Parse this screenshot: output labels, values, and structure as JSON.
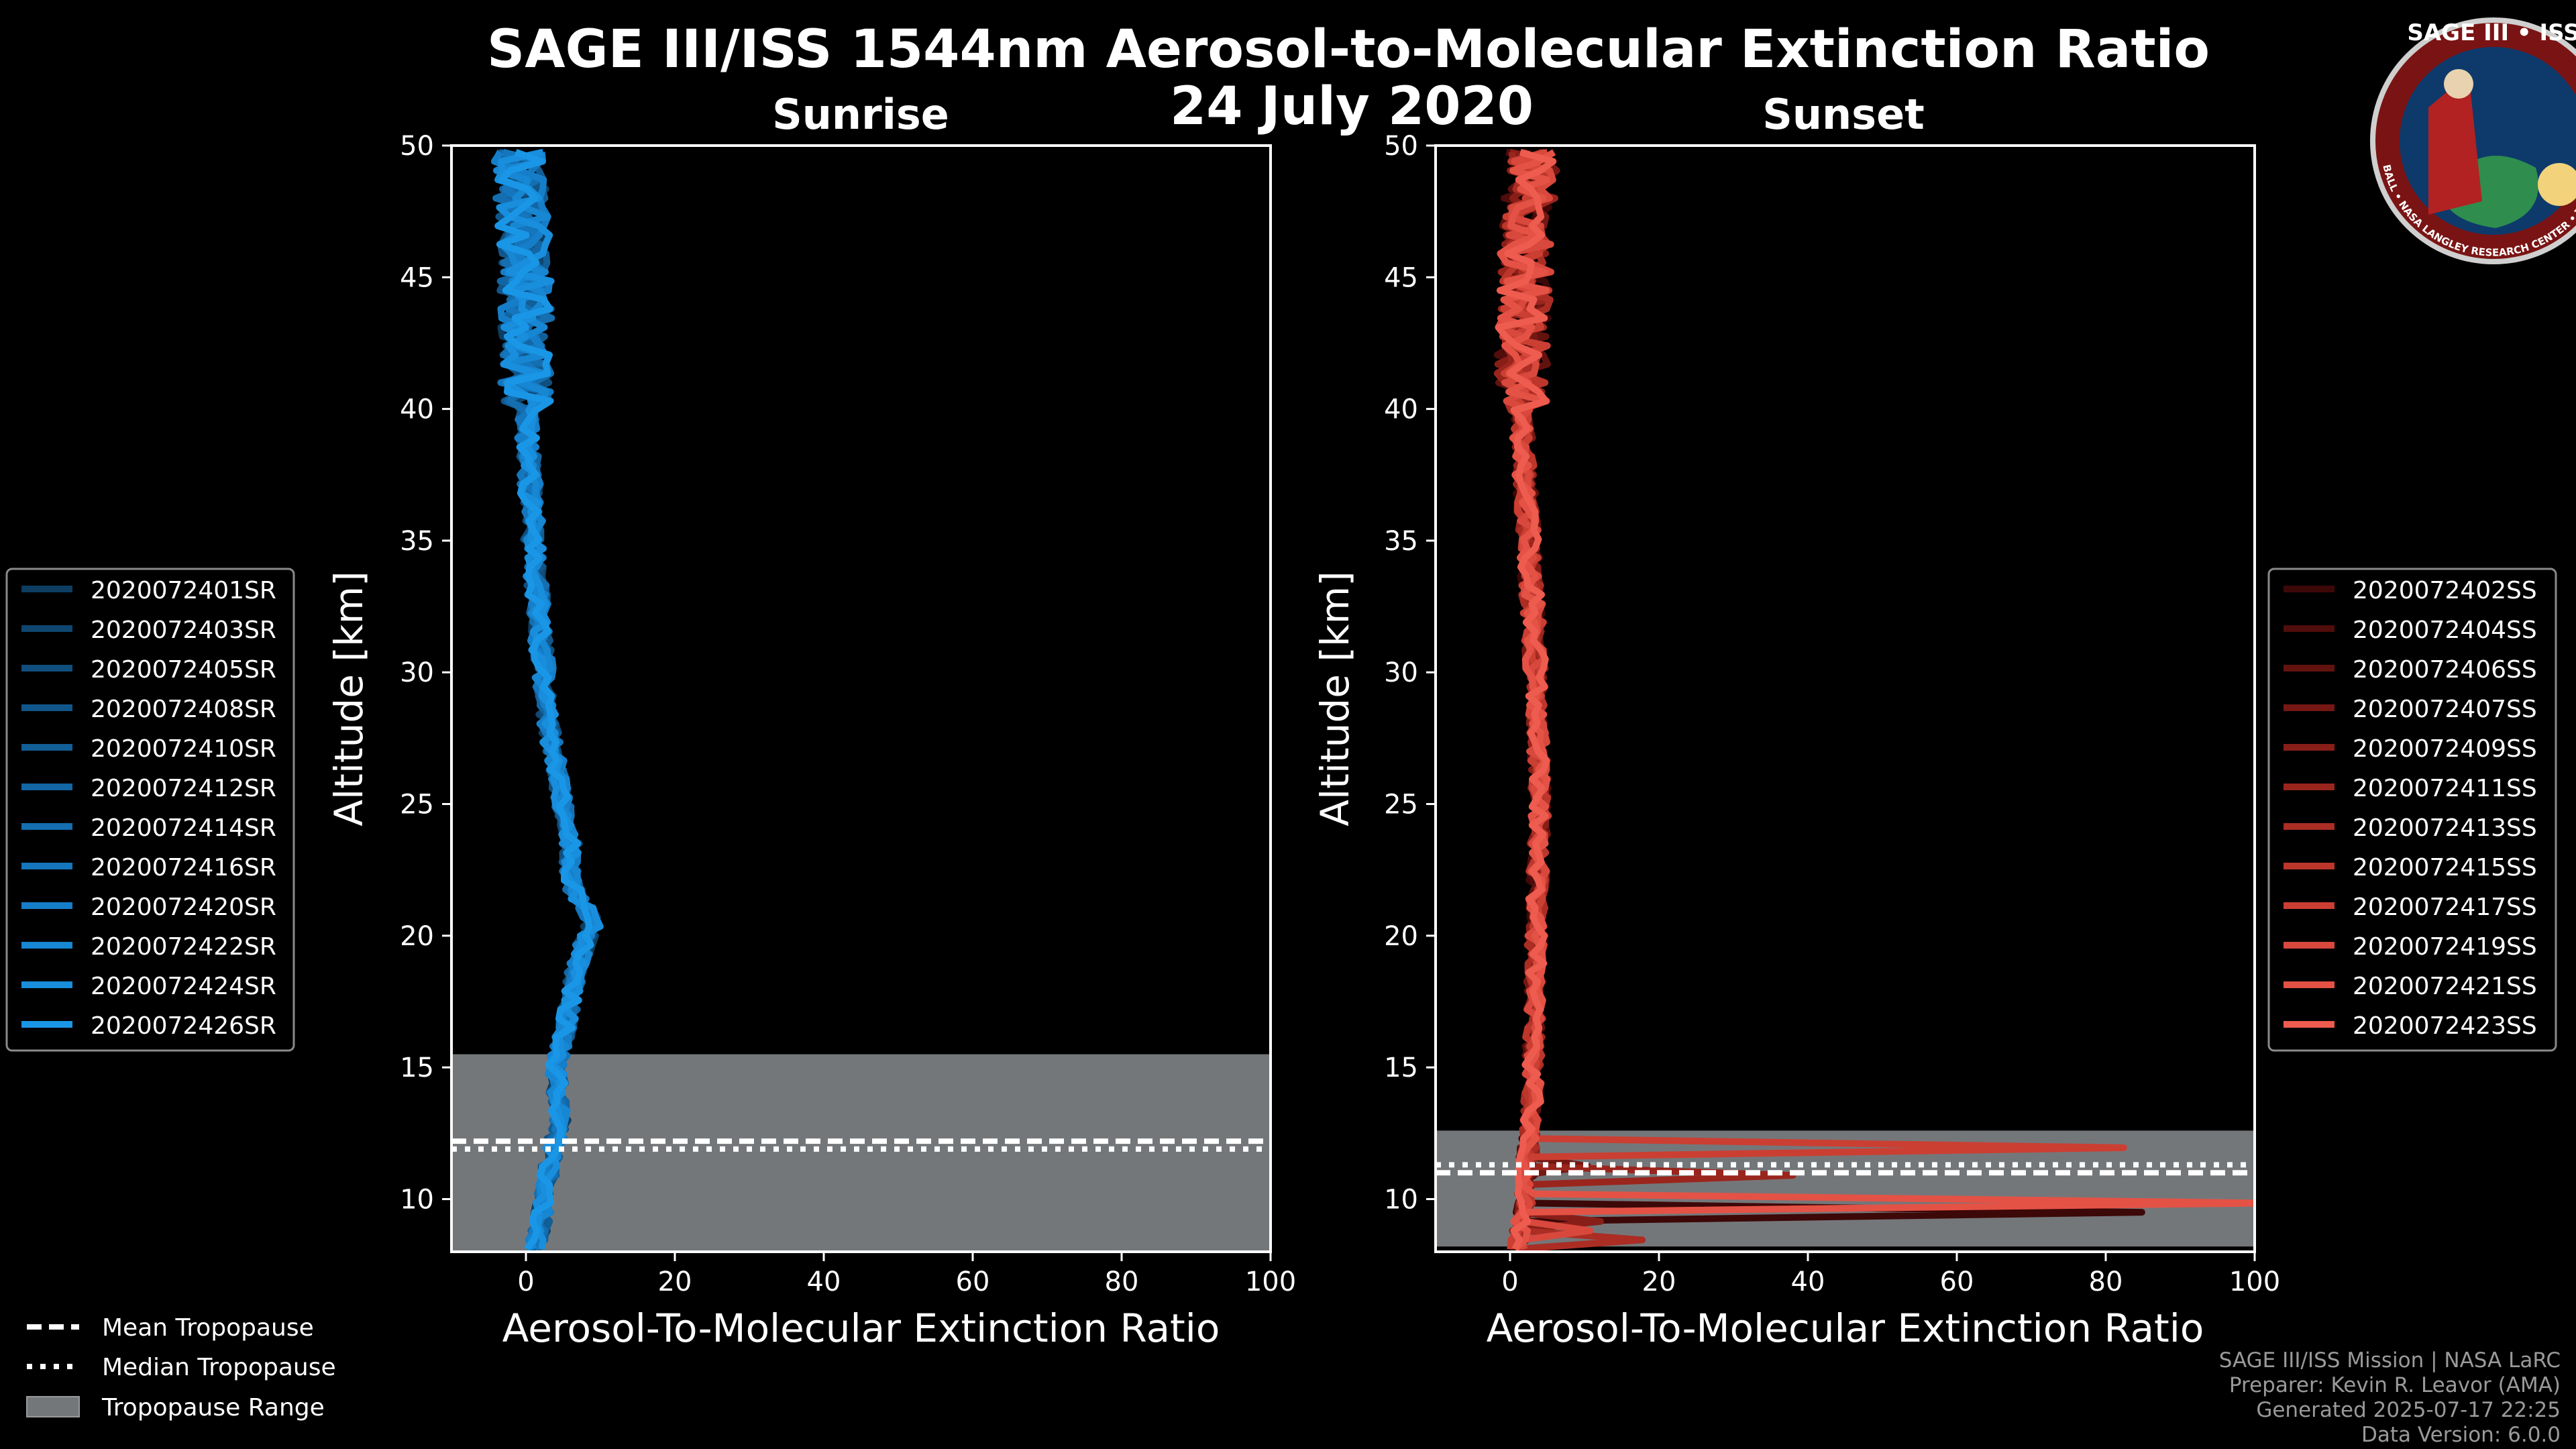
{
  "chart_data": {
    "type": "line",
    "title": "SAGE III/ISS 1544nm Aerosol-to-Molecular Extinction Ratio",
    "date": "24 July 2020",
    "logo": {
      "text": "SAGE III • ISS",
      "ring_text": "BALL • NASA LANGLEY RESEARCH CENTER • TAS • ESA"
    },
    "panels": [
      {
        "title": "Sunrise",
        "xlabel": "Aerosol-To-Molecular Extinction Ratio",
        "ylabel": "Altitude [km]",
        "xlim": [
          -10,
          100
        ],
        "ylim": [
          8,
          50
        ],
        "xticks": [
          "0",
          "20",
          "40",
          "60",
          "80",
          "100"
        ],
        "yticks": [
          "10",
          "15",
          "20",
          "25",
          "30",
          "35",
          "40",
          "45",
          "50"
        ],
        "tropopause_range": [
          8,
          15.5
        ],
        "mean_tropopause": 12.2,
        "median_tropopause": 11.9,
        "series": [
          {
            "name": "2020072401SR",
            "color": "#0d3e62"
          },
          {
            "name": "2020072403SR",
            "color": "#0f4670"
          },
          {
            "name": "2020072405SR",
            "color": "#104e7d"
          },
          {
            "name": "2020072408SR",
            "color": "#11568a"
          },
          {
            "name": "2020072410SR",
            "color": "#125e97"
          },
          {
            "name": "2020072412SR",
            "color": "#1366a4"
          },
          {
            "name": "2020072414SR",
            "color": "#146eb0"
          },
          {
            "name": "2020072416SR",
            "color": "#1576bd"
          },
          {
            "name": "2020072420SR",
            "color": "#167ec9"
          },
          {
            "name": "2020072422SR",
            "color": "#1786d3"
          },
          {
            "name": "2020072424SR",
            "color": "#188edd"
          },
          {
            "name": "2020072426SR",
            "color": "#1a96e6"
          }
        ]
      },
      {
        "title": "Sunset",
        "xlabel": "Aerosol-To-Molecular Extinction Ratio",
        "ylabel": "Altitude [km]",
        "xlim": [
          -10,
          100
        ],
        "ylim": [
          8,
          50
        ],
        "xticks": [
          "0",
          "20",
          "40",
          "60",
          "80",
          "100"
        ],
        "yticks": [
          "10",
          "15",
          "20",
          "25",
          "30",
          "35",
          "40",
          "45",
          "50"
        ],
        "tropopause_range": [
          8.2,
          12.6
        ],
        "mean_tropopause": 11.0,
        "median_tropopause": 11.3,
        "series": [
          {
            "name": "2020072402SS",
            "color": "#3d0808"
          },
          {
            "name": "2020072404SS",
            "color": "#4f0d0b"
          },
          {
            "name": "2020072406SS",
            "color": "#62120f"
          },
          {
            "name": "2020072407SS",
            "color": "#751813"
          },
          {
            "name": "2020072409SS",
            "color": "#881e18"
          },
          {
            "name": "2020072411SS",
            "color": "#9a251d"
          },
          {
            "name": "2020072413SS",
            "color": "#ab2d24"
          },
          {
            "name": "2020072415SS",
            "color": "#bc362b"
          },
          {
            "name": "2020072417SS",
            "color": "#cb3f33"
          },
          {
            "name": "2020072419SS",
            "color": "#d8483c"
          },
          {
            "name": "2020072421SS",
            "color": "#e45246"
          },
          {
            "name": "2020072423SS",
            "color": "#ee5c4f"
          }
        ]
      }
    ],
    "tropopause_legend": [
      "Mean Tropopause",
      "Median Tropopause",
      "Tropopause Range"
    ],
    "credits": [
      "SAGE III/ISS Mission | NASA LaRC",
      "Preparer: Kevin R. Leavor (AMA)",
      "Generated 2025-07-17 22:25",
      "Data Version: 6.0.0"
    ]
  }
}
